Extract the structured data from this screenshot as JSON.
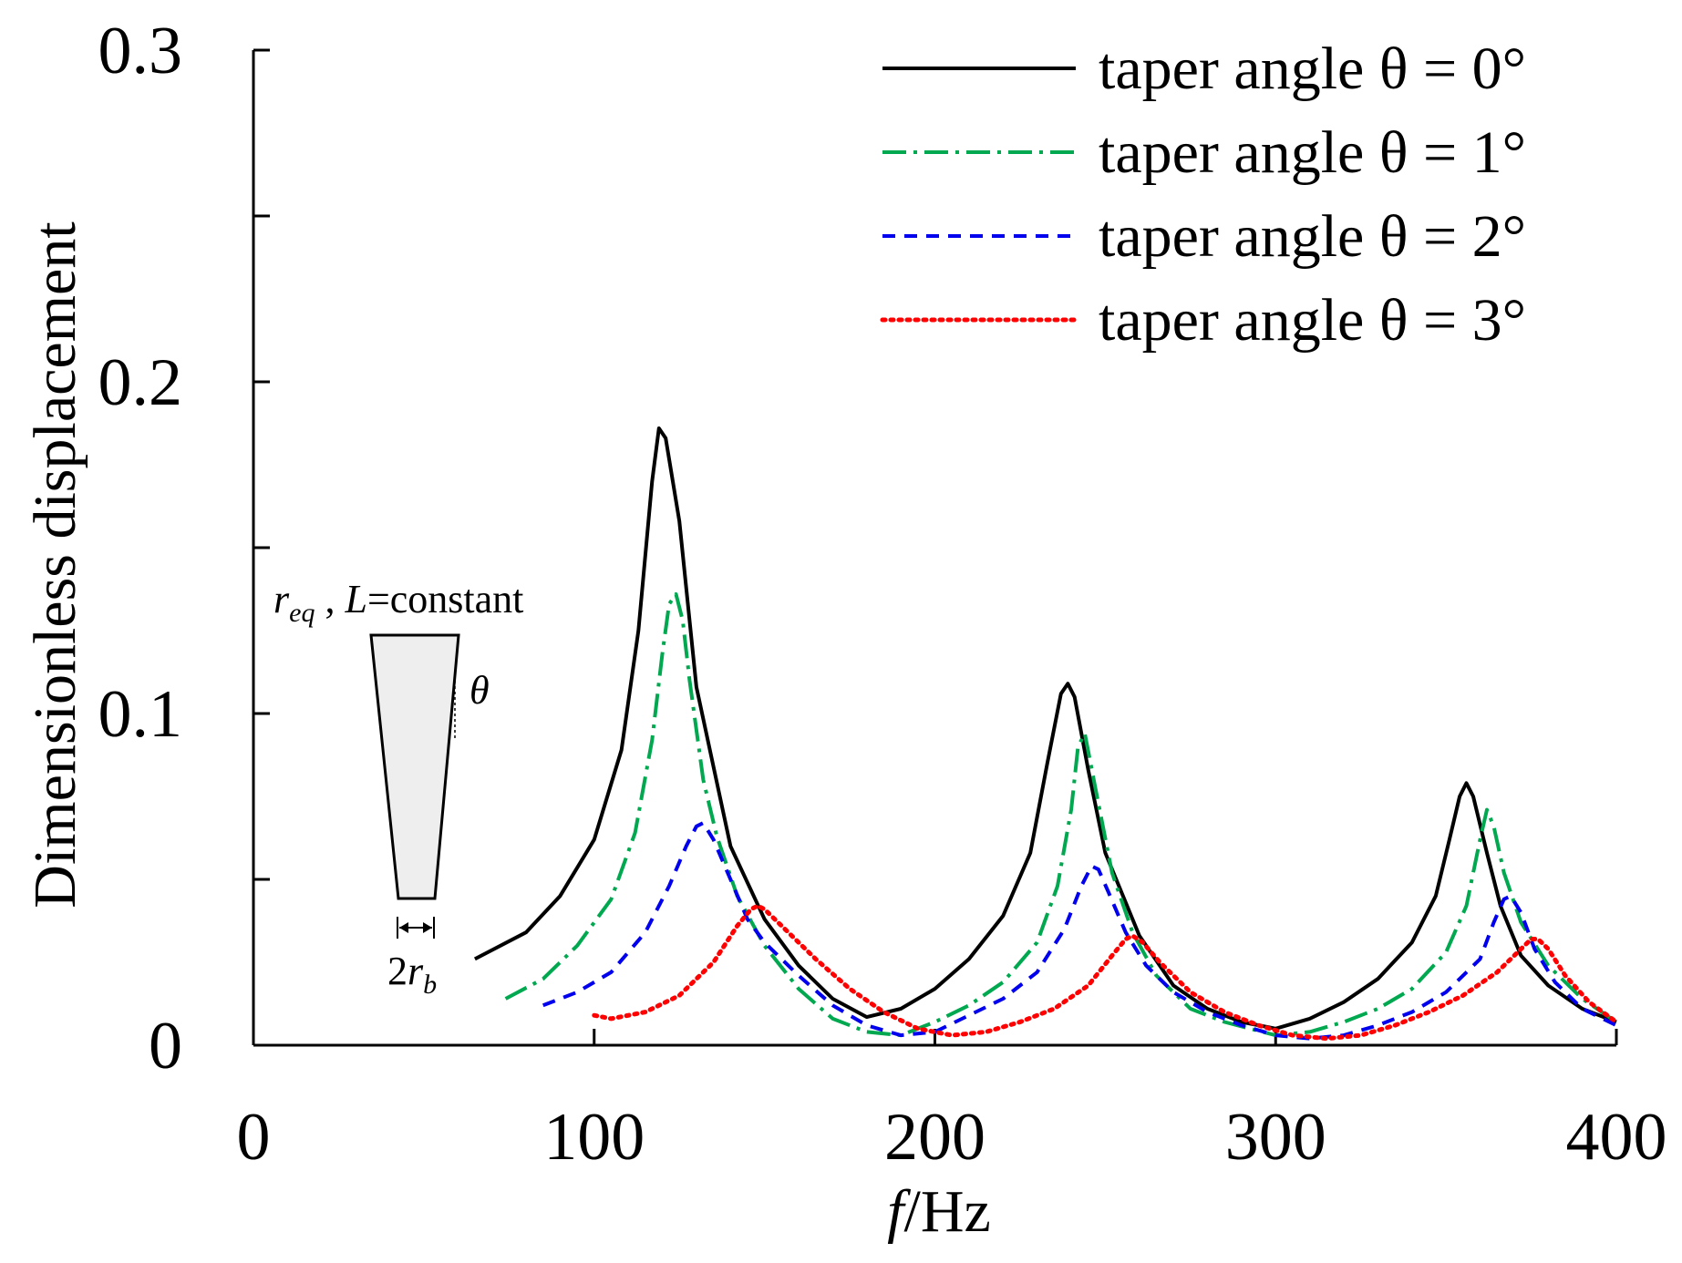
{
  "chart_data": {
    "type": "line",
    "title": "",
    "xlabel": "f/Hz",
    "xlabel_parts": {
      "italic": "f",
      "rest": "/Hz"
    },
    "ylabel": "Dimensionless displacement",
    "xlim": [
      0,
      400
    ],
    "ylim": [
      0,
      0.3
    ],
    "x_ticks": [
      {
        "value": 0,
        "label": "0"
      },
      {
        "value": 100,
        "label": "100"
      },
      {
        "value": 200,
        "label": "200"
      },
      {
        "value": 300,
        "label": "300"
      },
      {
        "value": 400,
        "label": "400"
      }
    ],
    "y_ticks": [
      {
        "value": 0,
        "label": "0"
      },
      {
        "value": 0.05,
        "label": ""
      },
      {
        "value": 0.1,
        "label": "0.1"
      },
      {
        "value": 0.15,
        "label": ""
      },
      {
        "value": 0.2,
        "label": "0.2"
      },
      {
        "value": 0.25,
        "label": ""
      },
      {
        "value": 0.3,
        "label": "0.3"
      }
    ],
    "grid": false,
    "legend_position": "top-right",
    "series": [
      {
        "name": "taper angle θ = 0°",
        "color": "#000000",
        "style": "solid",
        "x": [
          65,
          80,
          90,
          100,
          108,
          113,
          117,
          119,
          121,
          125,
          130,
          140,
          150,
          160,
          170,
          180,
          190,
          200,
          210,
          220,
          228,
          233,
          237,
          239,
          241,
          245,
          250,
          260,
          270,
          280,
          290,
          300,
          310,
          320,
          330,
          340,
          347,
          351,
          354,
          356,
          358,
          362,
          366,
          372,
          380,
          390,
          400
        ],
        "values": [
          0.026,
          0.034,
          0.045,
          0.062,
          0.089,
          0.125,
          0.17,
          0.186,
          0.183,
          0.158,
          0.108,
          0.06,
          0.038,
          0.024,
          0.014,
          0.0085,
          0.011,
          0.017,
          0.026,
          0.039,
          0.058,
          0.085,
          0.106,
          0.109,
          0.105,
          0.083,
          0.058,
          0.033,
          0.018,
          0.011,
          0.007,
          0.005,
          0.008,
          0.013,
          0.02,
          0.031,
          0.045,
          0.062,
          0.075,
          0.079,
          0.075,
          0.058,
          0.042,
          0.027,
          0.018,
          0.011,
          0.007
        ]
      },
      {
        "name": "taper angle θ = 1°",
        "color": "#00A84F",
        "style": "dashdot",
        "x": [
          74,
          85,
          95,
          105,
          112,
          117,
          120,
          122,
          124,
          126,
          128,
          132,
          136,
          142,
          150,
          160,
          170,
          180,
          190,
          200,
          210,
          220,
          230,
          236,
          240,
          242,
          244,
          247,
          252,
          258,
          265,
          275,
          285,
          300,
          310,
          320,
          330,
          340,
          350,
          356,
          360,
          362,
          364,
          367,
          372,
          380,
          390,
          400
        ],
        "values": [
          0.014,
          0.02,
          0.03,
          0.044,
          0.064,
          0.092,
          0.118,
          0.133,
          0.136,
          0.128,
          0.11,
          0.08,
          0.063,
          0.045,
          0.03,
          0.017,
          0.008,
          0.004,
          0.003,
          0.007,
          0.012,
          0.019,
          0.031,
          0.048,
          0.071,
          0.09,
          0.094,
          0.078,
          0.052,
          0.034,
          0.021,
          0.011,
          0.007,
          0.003,
          0.004,
          0.007,
          0.011,
          0.017,
          0.028,
          0.042,
          0.062,
          0.071,
          0.066,
          0.052,
          0.037,
          0.024,
          0.014,
          0.007
        ]
      },
      {
        "name": "taper angle θ = 2°",
        "color": "#0000EE",
        "style": "dashed",
        "x": [
          85,
          95,
          105,
          115,
          122,
          127,
          130,
          132,
          135,
          140,
          145,
          150,
          160,
          170,
          180,
          190,
          200,
          210,
          220,
          230,
          238,
          243,
          246,
          248,
          251,
          256,
          262,
          270,
          280,
          290,
          300,
          310,
          320,
          330,
          340,
          350,
          360,
          364,
          367,
          369,
          372,
          376,
          382,
          390,
          400
        ],
        "values": [
          0.012,
          0.016,
          0.022,
          0.034,
          0.048,
          0.06,
          0.066,
          0.067,
          0.062,
          0.05,
          0.038,
          0.031,
          0.021,
          0.012,
          0.006,
          0.003,
          0.004,
          0.009,
          0.014,
          0.022,
          0.035,
          0.048,
          0.054,
          0.053,
          0.046,
          0.034,
          0.024,
          0.016,
          0.01,
          0.006,
          0.003,
          0.002,
          0.003,
          0.006,
          0.01,
          0.016,
          0.026,
          0.037,
          0.044,
          0.045,
          0.04,
          0.029,
          0.019,
          0.011,
          0.006
        ]
      },
      {
        "name": "taper angle θ = 3°",
        "color": "#FF0000",
        "style": "dotted",
        "x": [
          100,
          105,
          115,
          125,
          135,
          142,
          146,
          148,
          150,
          155,
          165,
          175,
          185,
          195,
          205,
          215,
          225,
          235,
          245,
          252,
          256,
          258,
          261,
          266,
          275,
          285,
          295,
          305,
          315,
          325,
          335,
          345,
          355,
          365,
          372,
          375,
          377,
          380,
          385,
          392,
          400
        ],
        "values": [
          0.009,
          0.008,
          0.01,
          0.015,
          0.025,
          0.036,
          0.041,
          0.042,
          0.041,
          0.036,
          0.026,
          0.017,
          0.01,
          0.005,
          0.003,
          0.004,
          0.007,
          0.011,
          0.018,
          0.027,
          0.032,
          0.033,
          0.031,
          0.025,
          0.016,
          0.01,
          0.006,
          0.003,
          0.002,
          0.003,
          0.006,
          0.01,
          0.015,
          0.022,
          0.029,
          0.032,
          0.032,
          0.029,
          0.021,
          0.013,
          0.007
        ]
      }
    ],
    "annotations": {
      "inset_label_req": "r",
      "inset_label_req_sub": "eq",
      "inset_label_sep": " , ",
      "inset_label_L": "L",
      "inset_label_const": "=constant",
      "inset_theta": "θ",
      "inset_base_num": "2",
      "inset_base_r": "r",
      "inset_base_sub": "b"
    }
  }
}
